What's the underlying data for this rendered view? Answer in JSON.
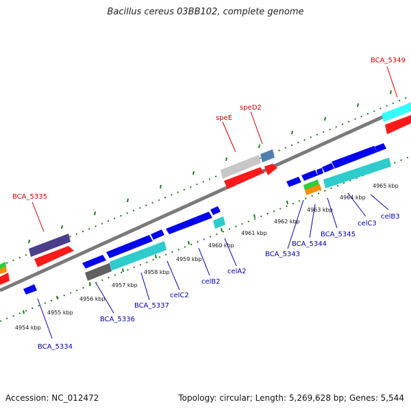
{
  "title": "Bacillus cereus 03BB102, complete genome",
  "footer": {
    "accession": "Accession: NC_012472",
    "summary": "Topology: circular; Length: 5,269,628 bp; Genes: 5,544"
  },
  "colors": {
    "backbone": "#808080",
    "tick": "#1a7a1a",
    "label_forward": "#cc0000",
    "label_reverse": "#0000aa"
  },
  "ticks": [
    "4954 kbp",
    "4955 kbp",
    "4956 kbp",
    "4957 kbp",
    "4958 kbp",
    "4959 kbp",
    "4960 kbp",
    "4961 kbp",
    "4962 kbp",
    "4963 kbp",
    "4964 kbp",
    "4965 kbp"
  ],
  "gene_labels": {
    "forward": [
      "BCA_5335",
      "speE",
      "speD2",
      "BCA_5349"
    ],
    "reverse": [
      "BCA_5334",
      "BCA_5336",
      "BCA_5337",
      "celC2",
      "celB2",
      "celA2",
      "BCA_5343",
      "BCA_5344",
      "BCA_5345",
      "celC3",
      "celB3"
    ]
  }
}
